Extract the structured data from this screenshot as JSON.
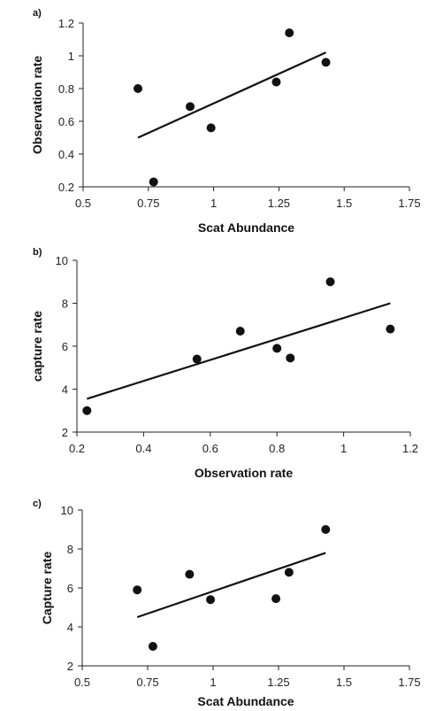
{
  "chart_data": [
    {
      "panel": "a)",
      "type": "scatter",
      "xlabel": "Scat Abundance",
      "ylabel": "Observation rate",
      "xlim": [
        0.5,
        1.75
      ],
      "ylim": [
        0.2,
        1.2
      ],
      "xticks": [
        "0.5",
        "0.75",
        "1",
        "1.25",
        "1.5",
        "1.75"
      ],
      "yticks": [
        "0.2",
        "0.4",
        "0.6",
        "0.8",
        "1",
        "1.2"
      ],
      "points": [
        {
          "x": 0.71,
          "y": 0.8
        },
        {
          "x": 0.77,
          "y": 0.23
        },
        {
          "x": 0.91,
          "y": 0.69
        },
        {
          "x": 0.99,
          "y": 0.56
        },
        {
          "x": 1.24,
          "y": 0.84
        },
        {
          "x": 1.29,
          "y": 1.14
        },
        {
          "x": 1.43,
          "y": 0.96
        }
      ],
      "trendline": {
        "x": [
          0.71,
          1.43
        ],
        "y": [
          0.5,
          1.02
        ]
      },
      "grid": false
    },
    {
      "panel": "b)",
      "type": "scatter",
      "xlabel": "Observation rate",
      "ylabel": "capture rate",
      "xlim": [
        0.2,
        1.2
      ],
      "ylim": [
        2,
        10
      ],
      "xticks": [
        "0.2",
        "0.4",
        "0.6",
        "0.8",
        "1",
        "1.2"
      ],
      "yticks": [
        "2",
        "4",
        "6",
        "8",
        "10"
      ],
      "points": [
        {
          "x": 0.23,
          "y": 3.0
        },
        {
          "x": 0.56,
          "y": 5.4
        },
        {
          "x": 0.69,
          "y": 6.7
        },
        {
          "x": 0.8,
          "y": 5.9
        },
        {
          "x": 0.84,
          "y": 5.45
        },
        {
          "x": 0.96,
          "y": 9.0
        },
        {
          "x": 1.14,
          "y": 6.8
        }
      ],
      "trendline": {
        "x": [
          0.23,
          1.14
        ],
        "y": [
          3.55,
          8.0
        ]
      },
      "grid": false
    },
    {
      "panel": "c)",
      "type": "scatter",
      "xlabel": "Scat Abundance",
      "ylabel": "Capture rate",
      "xlim": [
        0.5,
        1.75
      ],
      "ylim": [
        2,
        10
      ],
      "xticks": [
        "0.5",
        "0.75",
        "1",
        "1.25",
        "1.5",
        "1.75"
      ],
      "yticks": [
        "2",
        "4",
        "6",
        "8",
        "10"
      ],
      "points": [
        {
          "x": 0.71,
          "y": 5.9
        },
        {
          "x": 0.77,
          "y": 3.0
        },
        {
          "x": 0.91,
          "y": 6.7
        },
        {
          "x": 0.99,
          "y": 5.4
        },
        {
          "x": 1.24,
          "y": 5.45
        },
        {
          "x": 1.29,
          "y": 6.8
        },
        {
          "x": 1.43,
          "y": 9.0
        }
      ],
      "trendline": {
        "x": [
          0.71,
          1.43
        ],
        "y": [
          4.5,
          7.8
        ]
      },
      "grid": false
    }
  ]
}
